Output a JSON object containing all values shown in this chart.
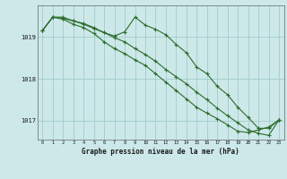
{
  "title": "Graphe pression niveau de la mer (hPa)",
  "background_color": "#cce8e8",
  "grid_color": "#a8d0d0",
  "line_color": "#2d6b2d",
  "xmin": -0.5,
  "xmax": 23.5,
  "ymin": 1016.55,
  "ymax": 1019.75,
  "yticks": [
    1017,
    1018,
    1019
  ],
  "xticks": [
    0,
    1,
    2,
    3,
    4,
    5,
    6,
    7,
    8,
    9,
    10,
    11,
    12,
    13,
    14,
    15,
    16,
    17,
    18,
    19,
    20,
    21,
    22,
    23
  ],
  "series1": [
    1019.15,
    1019.47,
    1019.47,
    1019.38,
    1019.32,
    1019.22,
    1019.1,
    1019.02,
    1019.12,
    1019.47,
    1019.28,
    1019.18,
    1019.05,
    1018.82,
    1018.62,
    1018.28,
    1018.12,
    1017.82,
    1017.62,
    1017.32,
    1017.08,
    1016.82,
    1016.82,
    1017.02
  ],
  "series2": [
    1019.15,
    1019.47,
    1019.42,
    1019.3,
    1019.22,
    1019.08,
    1018.88,
    1018.72,
    1018.6,
    1018.45,
    1018.32,
    1018.12,
    1017.92,
    1017.72,
    1017.52,
    1017.32,
    1017.18,
    1017.05,
    1016.9,
    1016.75,
    1016.72,
    1016.78,
    1016.85,
    1017.02
  ],
  "series3": [
    1019.15,
    1019.47,
    1019.44,
    1019.38,
    1019.3,
    1019.2,
    1019.1,
    1018.98,
    1018.88,
    1018.72,
    1018.58,
    1018.42,
    1018.22,
    1018.05,
    1017.88,
    1017.68,
    1017.5,
    1017.3,
    1017.12,
    1016.95,
    1016.78,
    1016.7,
    1016.65,
    1017.02
  ]
}
